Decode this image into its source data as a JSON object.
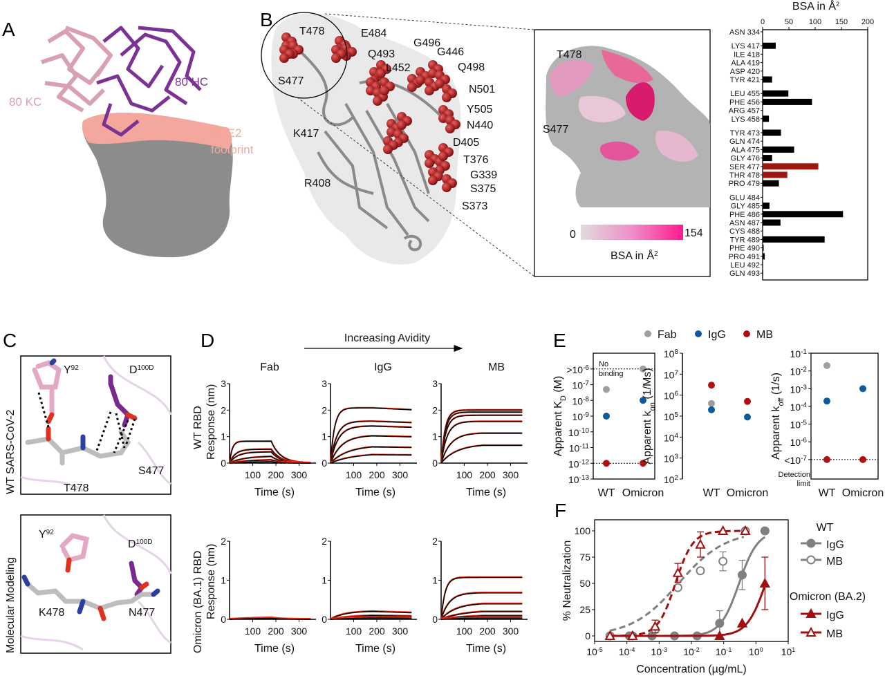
{
  "panel_labels": {
    "a": "A",
    "b": "B",
    "c": "C",
    "d": "D",
    "e": "E",
    "f": "F"
  },
  "panel_a": {
    "kc_label": "80 KC",
    "hc_label": "80 HC",
    "ace2_label_1": "ACE2",
    "ace2_label_2": "footprint",
    "colors": {
      "kc": "#d8a0b4",
      "hc": "#7b3294",
      "ace2": "#f4a79d",
      "surface": "#8c8c8c"
    }
  },
  "panel_b": {
    "residue_labels": [
      "T478",
      "E484",
      "G496",
      "G446",
      "Q493",
      "L452",
      "Q498",
      "S477",
      "N501",
      "Y505",
      "N440",
      "K417",
      "D405",
      "T376",
      "G339",
      "S375",
      "R408",
      "S373"
    ],
    "inset": {
      "t478": "T478",
      "s477": "S477",
      "colorbar_min": "0",
      "colorbar_max": "154",
      "colorbar_title": "BSA in Å",
      "colorbar_title_sup": "2",
      "colorbar_colors": [
        "#e0dcdc",
        "#ff1a8c"
      ]
    }
  },
  "panel_c": {
    "top_label": "WT SARS-CoV-2",
    "bottom_label": "Molecular Modeling",
    "top": {
      "y92": "Y",
      "y92_sup": "92",
      "d100d": "D",
      "d100d_sup": "100D",
      "s477": "S477",
      "t478": "T478"
    },
    "bottom": {
      "y92": "Y",
      "y92_sup": "92",
      "d100d": "D",
      "d100d_sup": "100D",
      "k478": "K478",
      "n477": "N477"
    }
  },
  "panel_d": {
    "avidity_label": "Increasing Avidity",
    "columns": [
      "Fab",
      "IgG",
      "MB"
    ],
    "row_labels": [
      "WT RBD",
      "Omicron (BA.1) RBD"
    ],
    "ylabel": "Response (nm)",
    "xlabel": "Time (s)"
  },
  "panel_e": {
    "legend": [
      "Fab",
      "IgG",
      "MB"
    ],
    "no_binding_1": "No",
    "no_binding_2": "binding",
    "detection_1": "Detection",
    "detection_2": "limit"
  },
  "panel_f": {
    "legend_wt": "WT",
    "legend_omicron": "Omicron (BA.2)",
    "legend_igg": "IgG",
    "legend_mb": "MB"
  },
  "chart_data": [
    {
      "id": "b-bsa",
      "type": "bar",
      "orientation": "horizontal",
      "title": "BSA in Å",
      "title_sup": "2",
      "xlim": [
        0,
        200
      ],
      "xticks": [
        0,
        50,
        100,
        150,
        200
      ],
      "groups": [
        [
          [
            "ASN 334",
            0
          ]
        ],
        [
          [
            "LYS 417",
            25
          ],
          [
            "ILE 418",
            0
          ],
          [
            "ALA 419",
            0
          ],
          [
            "ASP 420",
            0
          ],
          [
            "TYR 421",
            18
          ]
        ],
        [
          [
            "LEU 455",
            49
          ],
          [
            "PHE 456",
            94
          ],
          [
            "ARG 457",
            0
          ],
          [
            "LYS 458",
            12
          ]
        ],
        [
          [
            "TYR 473",
            35
          ],
          [
            "GLN 474",
            0
          ],
          [
            "ALA 475",
            60
          ],
          [
            "GLY 476",
            18
          ],
          [
            "SER 477",
            106
          ],
          [
            "THR 478",
            47
          ],
          [
            "PRO 479",
            31
          ]
        ],
        [
          [
            "GLU 484",
            0
          ],
          [
            "GLY 485",
            13
          ],
          [
            "PHE 486",
            153
          ],
          [
            "ASN 487",
            34
          ],
          [
            "CYS 488",
            0
          ],
          [
            "TYR 489",
            118
          ],
          [
            "PHE 490",
            2
          ],
          [
            "PRO 491",
            4
          ],
          [
            "LEU 492",
            0
          ],
          [
            "GLN 493",
            1
          ]
        ]
      ],
      "highlight": [
        "SER 477",
        "THR 478"
      ],
      "colors": {
        "bar": "#000000",
        "highlight": "#9b1a10"
      }
    },
    {
      "id": "d-kinetics",
      "type": "line",
      "xlim": [
        0,
        350
      ],
      "xticks": [
        100,
        200,
        300
      ],
      "association_end": 180,
      "colors": {
        "data": "#ff2a10",
        "fit": "#000000"
      },
      "panels": [
        {
          "row": 0,
          "col": 0,
          "ylim": [
            0,
            3
          ],
          "yticks": [
            0,
            1,
            2,
            3
          ],
          "plateaus": [
            0.82,
            0.52,
            0.42,
            0.26,
            0.14,
            0.06
          ],
          "koff": 0.025
        },
        {
          "row": 0,
          "col": 1,
          "ylim": [
            0,
            3
          ],
          "yticks": [
            0,
            1,
            2,
            3
          ],
          "plateaus": [
            2.08,
            1.58,
            1.4,
            1.05,
            0.67,
            0.38
          ],
          "koff": 0.0002
        },
        {
          "row": 0,
          "col": 2,
          "ylim": [
            0,
            3
          ],
          "yticks": [
            0,
            1,
            2,
            3
          ],
          "plateaus": [
            2.0,
            1.92,
            1.8,
            1.57,
            1.14,
            0.72
          ],
          "koff": 0
        },
        {
          "row": 1,
          "col": 0,
          "ylim": [
            0,
            2
          ],
          "yticks": [
            0,
            1,
            2
          ],
          "plateaus": [
            0.05,
            0.03
          ],
          "koff": 0.02
        },
        {
          "row": 1,
          "col": 1,
          "ylim": [
            0,
            2
          ],
          "yticks": [
            0,
            1,
            2
          ],
          "plateaus": [
            0.21,
            0.11,
            0.07,
            0.04
          ],
          "koff": 0.001
        },
        {
          "row": 1,
          "col": 2,
          "ylim": [
            0,
            2
          ],
          "yticks": [
            0,
            1,
            2
          ],
          "plateaus": [
            1.07,
            0.68,
            0.42,
            0.23,
            0.11,
            0.04
          ],
          "koff": 0
        }
      ]
    },
    {
      "id": "e-kd",
      "type": "scatter",
      "ylabel": "Apparent K",
      "ylabel_sub": "D",
      "ylabel_tail": " (M)",
      "yscale": "log",
      "ylim": [
        1e-13,
        1e-05
      ],
      "categories": [
        "WT",
        "Omicron"
      ],
      "ytick_labels": [
        {
          "v": -6,
          "pre": ">",
          "exp": "-6"
        },
        {
          "v": -7,
          "pre": "",
          "exp": "-7"
        },
        {
          "v": -8,
          "pre": "",
          "exp": "-8"
        },
        {
          "v": -9,
          "pre": "",
          "exp": "-9"
        },
        {
          "v": -10,
          "pre": "",
          "exp": "-10"
        },
        {
          "v": -11,
          "pre": "",
          "exp": "-11"
        },
        {
          "v": -12,
          "pre": "",
          "exp": "-12"
        },
        {
          "v": -13,
          "pre": "",
          "exp": "-13"
        }
      ],
      "reference_lines": [
        1e-06,
        1e-12
      ],
      "series": [
        {
          "name": "Fab",
          "color": "#9e9e9e",
          "values": [
            5e-08,
            1e-06
          ]
        },
        {
          "name": "IgG",
          "color": "#0d5b9e",
          "values": [
            1e-09,
            1e-08
          ]
        },
        {
          "name": "MB",
          "color": "#b01010",
          "values": [
            1e-12,
            1e-12
          ]
        }
      ]
    },
    {
      "id": "e-kon",
      "type": "scatter",
      "ylabel": "Apparent k",
      "ylabel_sub": "on",
      "ylabel_tail": " (1/Ms)",
      "yscale": "log",
      "ylim": [
        100.0,
        100000000.0
      ],
      "categories": [
        "WT",
        "Omicron"
      ],
      "ytick_labels": [
        {
          "v": 8,
          "pre": "",
          "exp": "8"
        },
        {
          "v": 7,
          "pre": "",
          "exp": "7"
        },
        {
          "v": 6,
          "pre": "",
          "exp": "6"
        },
        {
          "v": 5,
          "pre": "",
          "exp": "5"
        },
        {
          "v": 4,
          "pre": "",
          "exp": "4"
        },
        {
          "v": 3,
          "pre": "",
          "exp": "3"
        },
        {
          "v": 2,
          "pre": "",
          "exp": "2"
        }
      ],
      "reference_lines": [],
      "series": [
        {
          "name": "Fab",
          "color": "#9e9e9e",
          "values": [
            400000.0,
            null
          ]
        },
        {
          "name": "IgG",
          "color": "#0d5b9e",
          "values": [
            200000.0,
            90000.0
          ]
        },
        {
          "name": "MB",
          "color": "#b01010",
          "values": [
            3000000.0,
            500000.0
          ]
        }
      ]
    },
    {
      "id": "e-koff",
      "type": "scatter",
      "ylabel": "Apparent k",
      "ylabel_sub": "off",
      "ylabel_tail": " (1/s)",
      "yscale": "log",
      "ylim": [
        8e-09,
        0.1
      ],
      "categories": [
        "WT",
        "Omicron"
      ],
      "ytick_labels": [
        {
          "v": -1,
          "pre": "",
          "exp": "-1"
        },
        {
          "v": -2,
          "pre": "",
          "exp": "-2"
        },
        {
          "v": -3,
          "pre": "",
          "exp": "-3"
        },
        {
          "v": -4,
          "pre": "",
          "exp": "-4"
        },
        {
          "v": -5,
          "pre": "",
          "exp": "-5"
        },
        {
          "v": -6,
          "pre": "",
          "exp": "-6"
        },
        {
          "v": -7,
          "pre": "<",
          "exp": "-7"
        }
      ],
      "reference_lines": [
        1e-07
      ],
      "series": [
        {
          "name": "Fab",
          "color": "#9e9e9e",
          "values": [
            0.02,
            null
          ]
        },
        {
          "name": "IgG",
          "color": "#0d5b9e",
          "values": [
            0.0002,
            0.001
          ]
        },
        {
          "name": "MB",
          "color": "#b01010",
          "values": [
            1e-07,
            1e-07
          ]
        }
      ]
    },
    {
      "id": "f-neutralization",
      "type": "line",
      "xlabel": "Concentration (µg/mL)",
      "ylabel": "% Neutralization",
      "xscale": "log",
      "xlim": [
        1e-05,
        10
      ],
      "ylim": [
        -5,
        105
      ],
      "xtick_exps": [
        "-5",
        "-4",
        "-3",
        "-2",
        "-1",
        "0",
        "1"
      ],
      "yticks": [
        0,
        25,
        50,
        75,
        100
      ],
      "series": [
        {
          "name": "WT IgG",
          "color": "#808080",
          "marker": "filled-circle",
          "dash": false,
          "ec50": 0.3,
          "hill": 1.5,
          "x": [
            0.00012,
            0.0006,
            0.003,
            0.015,
            0.075,
            0.375,
            1.9
          ],
          "y": [
            0,
            0,
            0,
            0,
            12,
            58,
            100
          ],
          "err": [
            0,
            0,
            0,
            0,
            12,
            14,
            0
          ]
        },
        {
          "name": "WT MB",
          "color": "#808080",
          "marker": "open-circle",
          "dash": true,
          "ec50": 0.004,
          "hill": 0.6,
          "x": [
            3e-05,
            0.00015,
            0.00075,
            0.0038,
            0.019,
            0.095,
            0.47
          ],
          "y": [
            0,
            0,
            6,
            46,
            62,
            71,
            100
          ],
          "err": [
            0,
            0,
            3,
            0,
            0,
            9,
            0
          ]
        },
        {
          "name": "Omicron IgG",
          "color": "#a01010",
          "marker": "filled-triangle",
          "dash": false,
          "ec50": 2,
          "hill": 1.5,
          "x": [
            3e-05,
            0.00015,
            0.075,
            0.375,
            1.9
          ],
          "y": [
            0,
            0,
            0,
            12,
            50
          ],
          "err": [
            0,
            0,
            0,
            0,
            25
          ]
        },
        {
          "name": "Omicron MB",
          "color": "#a01010",
          "marker": "open-triangle",
          "dash": true,
          "ec50": 0.0032,
          "hill": 1.6,
          "x": [
            3e-05,
            0.00015,
            0.00075,
            0.0038,
            0.019,
            0.095,
            0.47
          ],
          "y": [
            0,
            0,
            9,
            60,
            87,
            100,
            100
          ],
          "err": [
            0,
            0,
            6,
            9,
            12,
            0,
            0
          ]
        }
      ]
    }
  ]
}
